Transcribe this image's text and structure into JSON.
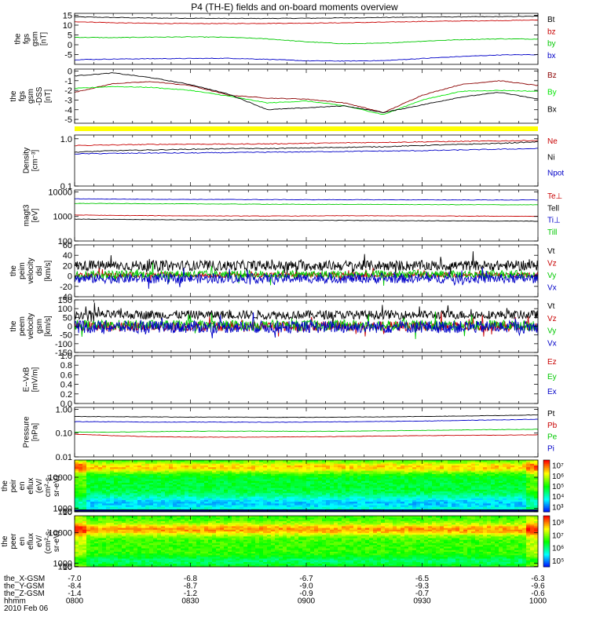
{
  "title": "P4 (TH-E) fields and on-board moments overview",
  "colors": {
    "black": "#000000",
    "red": "#c80000",
    "dark_red": "#8b0000",
    "green": "#00c800",
    "blue": "#0000c8",
    "bright_green": "#00e600",
    "yellow": "#ffff00"
  },
  "chart_data": [
    {
      "type": "line",
      "id": "fgs",
      "ylabel": [
        "the",
        "fgs",
        "gsm",
        "[nT]"
      ],
      "ylim": [
        -10,
        16
      ],
      "yticks": [
        {
          "v": 15,
          "label": "15"
        },
        {
          "v": 10,
          "label": "10"
        },
        {
          "v": 5,
          "label": "5"
        },
        {
          "v": 0,
          "label": "0"
        },
        {
          "v": -5,
          "label": "-5"
        }
      ],
      "series": [
        {
          "name": "Bt",
          "color": "black",
          "values": [
            14.2,
            13.9,
            13.6,
            13.5,
            13.4,
            13.4,
            13.5,
            13.7,
            13.9,
            14.1,
            14.2,
            14.3,
            14.5
          ]
        },
        {
          "name": "bz",
          "color": "red",
          "values": [
            11.8,
            11.2,
            10.9,
            10.8,
            10.8,
            10.9,
            11.0,
            11.2,
            11.5,
            11.9,
            12.1,
            12.3,
            12.6
          ]
        },
        {
          "name": "by",
          "color": "green",
          "values": [
            3.8,
            3.6,
            3.9,
            4.0,
            3.8,
            3.0,
            1.5,
            0.5,
            0.8,
            1.8,
            2.6,
            3.0,
            2.9
          ]
        },
        {
          "name": "bx",
          "color": "blue",
          "values": [
            -7.6,
            -7.3,
            -7.1,
            -7.0,
            -6.9,
            -7.4,
            -8.2,
            -8.3,
            -8.1,
            -7.0,
            -6.0,
            -5.2,
            -5.0
          ]
        }
      ]
    },
    {
      "type": "line",
      "id": "fgs_dsl",
      "ylabel": [
        "the",
        "fgs",
        "gsm",
        "-DSS",
        "[nT]"
      ],
      "ylim": [
        -5.4,
        0.2
      ],
      "yticks": [
        {
          "v": 0,
          "label": "0"
        },
        {
          "v": -1,
          "label": "-1"
        },
        {
          "v": -2,
          "label": "-2"
        },
        {
          "v": -3,
          "label": "-3"
        },
        {
          "v": -4,
          "label": "-4"
        },
        {
          "v": -5,
          "label": "-5"
        }
      ],
      "series": [
        {
          "name": "Bz",
          "color": "dark_red",
          "values": [
            -2.2,
            -1.3,
            -1.1,
            -1.5,
            -2.5,
            -2.8,
            -2.9,
            -3.3,
            -4.3,
            -2.5,
            -1.4,
            -1.0,
            -1.5
          ]
        },
        {
          "name": "By",
          "color": "bright_green",
          "values": [
            -1.8,
            -1.6,
            -1.7,
            -2.0,
            -2.6,
            -3.3,
            -3.1,
            -3.6,
            -4.5,
            -3.0,
            -2.1,
            -2.0,
            -2.1
          ]
        },
        {
          "name": "Bx",
          "color": "black",
          "values": [
            -0.5,
            -0.2,
            -0.7,
            -1.4,
            -2.4,
            -4.0,
            -3.8,
            -3.6,
            -4.3,
            -3.5,
            -2.7,
            -2.2,
            -2.9
          ]
        }
      ]
    },
    {
      "type": "line",
      "id": "density",
      "log": true,
      "ylabel": [
        "Density",
        "[cm^-3]"
      ],
      "ylim": [
        0.1,
        1.2
      ],
      "yticks": [
        {
          "v": 1.0,
          "label": "1.0"
        },
        {
          "v": 0.1,
          "label": "0.1"
        }
      ],
      "series": [
        {
          "name": "Ne",
          "color": "red",
          "values": [
            0.72,
            0.74,
            0.76,
            0.77,
            0.77,
            0.78,
            0.8,
            0.82,
            0.84,
            0.86,
            0.88,
            0.9,
            0.92
          ]
        },
        {
          "name": "Ni",
          "color": "black",
          "values": [
            0.52,
            0.56,
            0.58,
            0.6,
            0.62,
            0.62,
            0.64,
            0.66,
            0.68,
            0.72,
            0.76,
            0.8,
            0.86
          ]
        },
        {
          "name": "Npot",
          "color": "blue",
          "values": [
            0.48,
            0.49,
            0.5,
            0.5,
            0.51,
            0.52,
            0.53,
            0.54,
            0.55,
            0.56,
            0.58,
            0.6,
            0.62
          ]
        }
      ]
    },
    {
      "type": "line",
      "id": "temp",
      "log": true,
      "ylabel": [
        "magt3",
        "[eV]"
      ],
      "ylim": [
        100,
        12000
      ],
      "yticks": [
        {
          "v": 10000,
          "label": "10000"
        },
        {
          "v": 1000,
          "label": "1000"
        },
        {
          "v": 100,
          "label": "100"
        }
      ],
      "series": [
        {
          "name": "Te⊥",
          "color": "red",
          "values": [
            1150,
            1100,
            1080,
            1060,
            1050,
            1040,
            1050,
            1070,
            1060,
            1050,
            1040,
            1030,
            1020
          ]
        },
        {
          "name": "Tell",
          "color": "black",
          "values": [
            780,
            760,
            740,
            730,
            720,
            710,
            700,
            690,
            680,
            670,
            660,
            650,
            640
          ]
        },
        {
          "name": "Ti⊥",
          "color": "blue",
          "values": [
            5200,
            5100,
            5000,
            4950,
            4900,
            4850,
            4800,
            4800,
            4780,
            4750,
            4720,
            4700,
            4680
          ]
        },
        {
          "name": "Till",
          "color": "green",
          "values": [
            3400,
            3350,
            3300,
            3250,
            3200,
            3150,
            3100,
            3100,
            3080,
            3050,
            3020,
            3000,
            2980
          ]
        }
      ]
    },
    {
      "type": "line",
      "id": "peim_vel",
      "ylabel": [
        "the",
        "peim",
        "velocity",
        "dsl",
        "[km/s]"
      ],
      "ylim": [
        -40,
        60
      ],
      "yticks": [
        {
          "v": 60,
          "label": "60"
        },
        {
          "v": 40,
          "label": "40"
        },
        {
          "v": 20,
          "label": "20"
        },
        {
          "v": 0,
          "label": "0"
        },
        {
          "v": -20,
          "label": "-20"
        },
        {
          "v": -40,
          "label": "-40"
        }
      ],
      "series": [
        {
          "name": "Vt",
          "color": "black",
          "center": 20,
          "noise": 10
        },
        {
          "name": "Vz",
          "color": "red",
          "center": 2,
          "noise": 5
        },
        {
          "name": "Vy",
          "color": "green",
          "center": 3,
          "noise": 8
        },
        {
          "name": "Vx",
          "color": "blue",
          "center": -5,
          "noise": 9
        }
      ]
    },
    {
      "type": "line",
      "id": "peem_vel",
      "ylabel": [
        "the",
        "peem",
        "velocity",
        "gsm",
        "[km/s]"
      ],
      "ylim": [
        -150,
        150
      ],
      "yticks": [
        {
          "v": 150,
          "label": "150"
        },
        {
          "v": 100,
          "label": "100"
        },
        {
          "v": 50,
          "label": "50"
        },
        {
          "v": 0,
          "label": "0"
        },
        {
          "v": -50,
          "label": "-50"
        },
        {
          "v": -100,
          "label": "-100"
        },
        {
          "v": -150,
          "label": "-150"
        }
      ],
      "series": [
        {
          "name": "Vt",
          "color": "black",
          "center": 65,
          "noise": 25
        },
        {
          "name": "Vz",
          "color": "red",
          "center": 0,
          "noise": 28
        },
        {
          "name": "Vy",
          "color": "green",
          "center": 5,
          "noise": 30
        },
        {
          "name": "Vx",
          "color": "blue",
          "center": -5,
          "noise": 35
        }
      ]
    },
    {
      "type": "line",
      "id": "exb",
      "ylabel": [
        "E--VxB",
        "[mV/m]"
      ],
      "ylim": [
        0,
        1.0
      ],
      "yticks": [
        {
          "v": 1.0,
          "label": "1.0"
        },
        {
          "v": 0.8,
          "label": "0.8"
        },
        {
          "v": 0.6,
          "label": "0.6"
        },
        {
          "v": 0.4,
          "label": "0.4"
        },
        {
          "v": 0.2,
          "label": "0.2"
        },
        {
          "v": 0.0,
          "label": "0.0"
        }
      ],
      "series": [
        {
          "name": "Ez",
          "color": "red"
        },
        {
          "name": "Ey",
          "color": "green"
        },
        {
          "name": "Ex",
          "color": "blue"
        }
      ]
    },
    {
      "type": "line",
      "id": "pressure",
      "log": true,
      "ylabel": [
        "Pressure",
        "[nPa]"
      ],
      "ylim": [
        0.01,
        1.2
      ],
      "yticks": [
        {
          "v": 1.0,
          "label": "1.00"
        },
        {
          "v": 0.1,
          "label": "0.10"
        },
        {
          "v": 0.01,
          "label": "0.01"
        }
      ],
      "series": [
        {
          "name": "Pt",
          "color": "black",
          "values": [
            0.5,
            0.49,
            0.48,
            0.47,
            0.47,
            0.46,
            0.46,
            0.47,
            0.48,
            0.5,
            0.52,
            0.55,
            0.58
          ]
        },
        {
          "name": "Pb",
          "color": "red",
          "values": [
            0.09,
            0.078,
            0.07,
            0.068,
            0.067,
            0.068,
            0.07,
            0.072,
            0.075,
            0.078,
            0.08,
            0.082,
            0.085
          ]
        },
        {
          "name": "Pe",
          "color": "green",
          "values": [
            0.11,
            0.11,
            0.115,
            0.12,
            0.12,
            0.12,
            0.118,
            0.12,
            0.125,
            0.13,
            0.135,
            0.14,
            0.145
          ]
        },
        {
          "name": "Pi",
          "color": "blue",
          "values": [
            0.3,
            0.3,
            0.29,
            0.29,
            0.29,
            0.285,
            0.29,
            0.3,
            0.31,
            0.32,
            0.34,
            0.36,
            0.38
          ]
        }
      ]
    },
    {
      "type": "heatmap",
      "id": "peir_spec",
      "ylabel": [
        "the",
        "peir",
        "en",
        "eflux",
        "(eV/",
        "cm^2-s-",
        "sr-eV)"
      ],
      "ylim": [
        7,
        15000
      ],
      "yticks": [
        {
          "v": 10000,
          "label": "10000"
        },
        {
          "v": 1000,
          "label": "1000"
        },
        {
          "v": 100,
          "label": "100"
        },
        {
          "v": 10,
          "label": "10"
        }
      ],
      "colorbar": {
        "ticks": [
          "10^3",
          "10^4",
          "10^5",
          "10^6",
          "10^7"
        ]
      }
    },
    {
      "type": "heatmap",
      "id": "peer_spec",
      "ylabel": [
        "the",
        "peer",
        "en",
        "eflux",
        "eV/",
        "(cm^2-s-",
        "sr-eV)"
      ],
      "ylim": [
        7,
        15000
      ],
      "yticks": [
        {
          "v": 10000,
          "label": "10000"
        },
        {
          "v": 1000,
          "label": "1000"
        },
        {
          "v": 100,
          "label": "100"
        },
        {
          "v": 10,
          "label": "10"
        }
      ],
      "colorbar": {
        "ticks": [
          "10^5",
          "10^6",
          "10^7",
          "10^8"
        ]
      }
    }
  ],
  "x_axis": {
    "rows": [
      {
        "label": "the_X-GSM",
        "values": [
          "-7.0",
          "-6.8",
          "-6.7",
          "-6.5",
          "-6.3"
        ]
      },
      {
        "label": "the_Y-GSM",
        "values": [
          "-8.4",
          "-8.7",
          "-9.0",
          "-9.3",
          "-9.6"
        ]
      },
      {
        "label": "the_Z-GSM",
        "values": [
          "-1.4",
          "-1.2",
          "-0.9",
          "-0.7",
          "-0.6"
        ]
      },
      {
        "label": "hhmm",
        "values": [
          "0800",
          "0830",
          "0900",
          "0930",
          "1000"
        ]
      }
    ],
    "date": "2010 Feb 06"
  }
}
